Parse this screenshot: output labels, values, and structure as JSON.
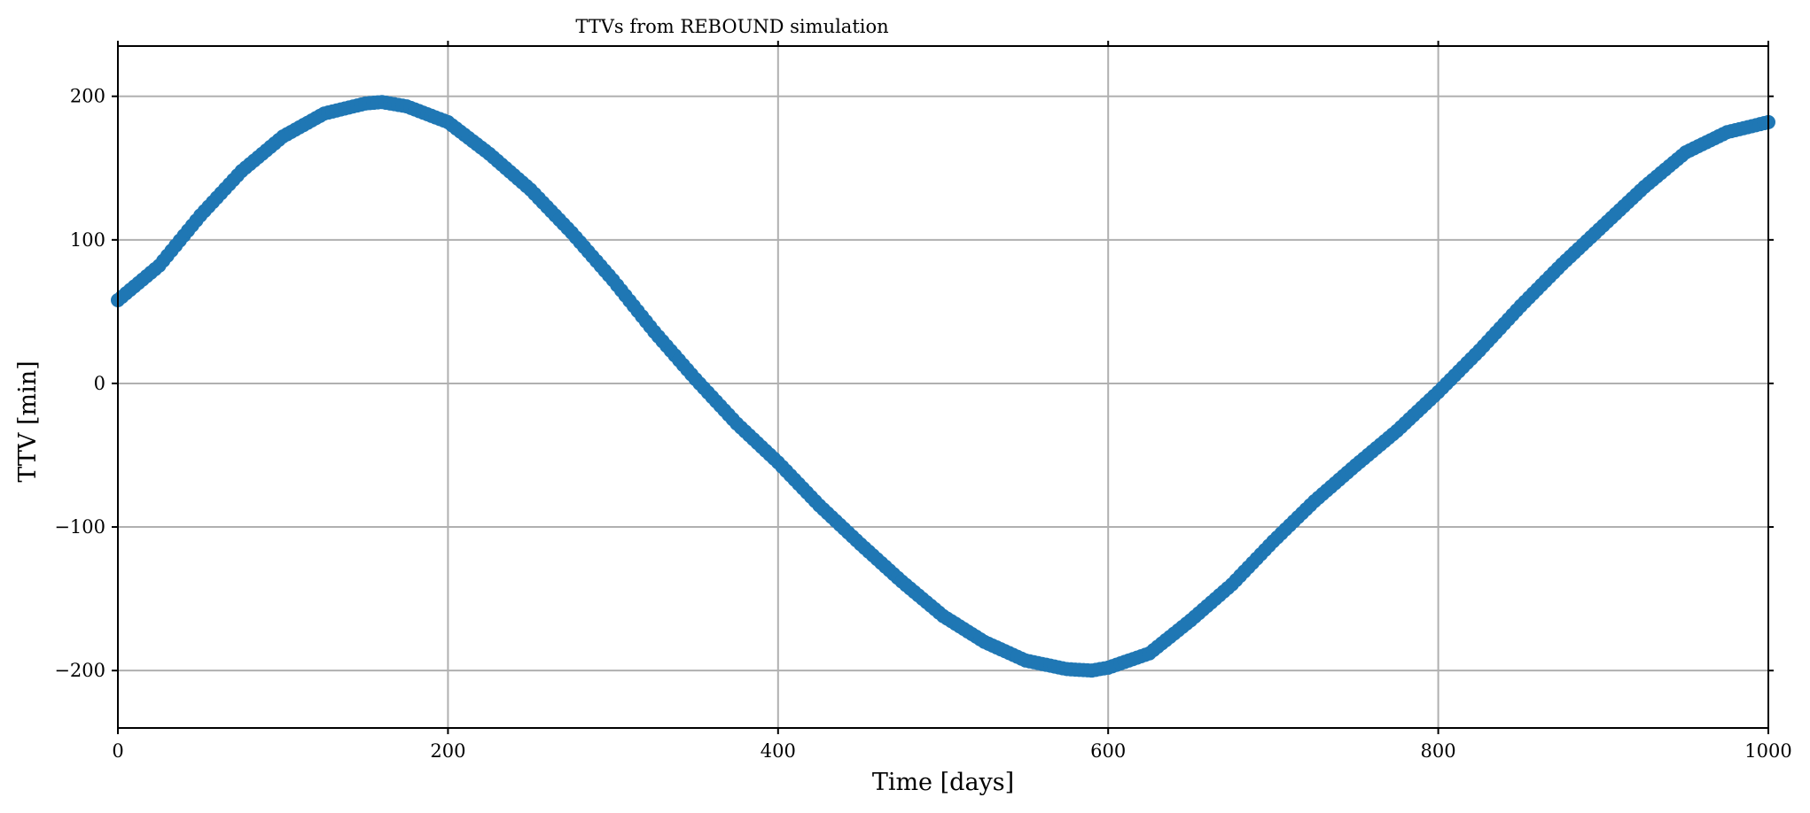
{
  "chart_data": {
    "type": "scatter",
    "title": "TTVs from REBOUND simulation",
    "xlabel": "Time [days]",
    "ylabel": "TTV [min]",
    "xlim": [
      0,
      1000
    ],
    "ylim": [
      -240,
      235
    ],
    "xticks": [
      0,
      200,
      400,
      600,
      800,
      1000
    ],
    "yticks": [
      -200,
      -100,
      0,
      100,
      200
    ],
    "xtick_labels": [
      "0",
      "200",
      "400",
      "600",
      "800",
      "1000"
    ],
    "ytick_labels": [
      "−200",
      "−100",
      "0",
      "100",
      "200"
    ],
    "grid": true,
    "series": [
      {
        "name": "TTV",
        "color": "#1f77b4",
        "x": [
          0,
          25,
          50,
          75,
          100,
          125,
          150,
          160,
          175,
          200,
          225,
          250,
          275,
          300,
          325,
          350,
          375,
          400,
          425,
          450,
          475,
          500,
          525,
          550,
          575,
          590,
          600,
          625,
          650,
          675,
          700,
          725,
          750,
          775,
          800,
          825,
          850,
          875,
          900,
          925,
          950,
          975,
          1000
        ],
        "y": [
          58,
          82,
          117,
          148,
          172,
          188,
          195,
          196,
          193,
          182,
          160,
          135,
          105,
          72,
          36,
          3,
          -28,
          -55,
          -85,
          -112,
          -138,
          -162,
          -180,
          -193,
          -199,
          -200,
          -198,
          -188,
          -165,
          -140,
          -110,
          -82,
          -57,
          -33,
          -6,
          23,
          54,
          83,
          110,
          137,
          161,
          175,
          182
        ]
      }
    ]
  }
}
